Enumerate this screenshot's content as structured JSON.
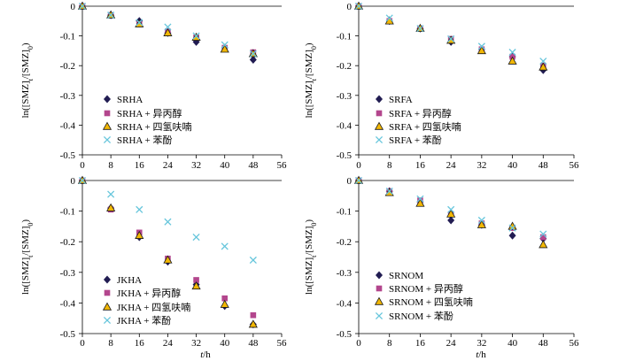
{
  "chart_data": [
    {
      "type": "scatter",
      "ylabel_parts": [
        {
          "text": "ln([SMZ]"
        },
        {
          "text": "t",
          "sub": true
        },
        {
          "text": "/[SMZ]"
        },
        {
          "text": "0",
          "sub": true
        },
        {
          "text": ")"
        }
      ],
      "x": [
        0,
        8,
        16,
        24,
        32,
        40,
        48
      ],
      "xlim": [
        0,
        56
      ],
      "xticks": [
        0,
        8,
        16,
        24,
        32,
        40,
        48,
        56
      ],
      "ylim": [
        -0.5,
        0
      ],
      "yticks": [
        0,
        -0.1,
        -0.2,
        -0.3,
        -0.4,
        -0.5
      ],
      "grid": false,
      "legend": "bottom-left",
      "series": [
        {
          "name": "SRHA",
          "marker": "diamond",
          "color": "#211c52",
          "values": [
            0,
            -0.03,
            -0.05,
            -0.09,
            -0.12,
            -0.14,
            -0.18
          ]
        },
        {
          "name": "SRHA + 异丙醇",
          "marker": "square",
          "color": "#b3468d",
          "values": [
            0,
            -0.03,
            -0.06,
            -0.085,
            -0.105,
            -0.14,
            -0.155
          ]
        },
        {
          "name": "SRHA + 四氢呋喃",
          "marker": "triangle",
          "color": "#f2b705",
          "edgecolor": "#1a1a1a",
          "values": [
            0,
            -0.03,
            -0.06,
            -0.09,
            -0.105,
            -0.145,
            -0.16
          ]
        },
        {
          "name": "SRHA + 苯酚",
          "marker": "x",
          "color": "#67c6dc",
          "values": [
            0,
            -0.03,
            -0.055,
            -0.07,
            -0.1,
            -0.13,
            -0.16
          ]
        }
      ]
    },
    {
      "type": "scatter",
      "ylabel_parts": [
        {
          "text": "ln([SMZ]"
        },
        {
          "text": "t",
          "sub": true
        },
        {
          "text": "/[SMZ]"
        },
        {
          "text": "0",
          "sub": true
        },
        {
          "text": ")"
        }
      ],
      "x": [
        0,
        8,
        16,
        24,
        32,
        40,
        48
      ],
      "xlim": [
        0,
        56
      ],
      "xticks": [
        0,
        8,
        16,
        24,
        32,
        40,
        48,
        56
      ],
      "ylim": [
        -0.5,
        0
      ],
      "yticks": [
        0,
        -0.1,
        -0.2,
        -0.3,
        -0.4,
        -0.5
      ],
      "grid": false,
      "legend": "bottom-left",
      "series": [
        {
          "name": "SRFA",
          "marker": "diamond",
          "color": "#211c52",
          "values": [
            0,
            -0.05,
            -0.075,
            -0.12,
            -0.145,
            -0.17,
            -0.215
          ]
        },
        {
          "name": "SRFA + 异丙醇",
          "marker": "square",
          "color": "#b3468d",
          "values": [
            0,
            -0.05,
            -0.075,
            -0.11,
            -0.145,
            -0.17,
            -0.2
          ]
        },
        {
          "name": "SRFA + 四氢呋喃",
          "marker": "triangle",
          "color": "#f2b705",
          "edgecolor": "#1a1a1a",
          "values": [
            0,
            -0.05,
            -0.075,
            -0.115,
            -0.15,
            -0.185,
            -0.205
          ]
        },
        {
          "name": "SRFA + 苯酚",
          "marker": "x",
          "color": "#67c6dc",
          "values": [
            0,
            -0.04,
            -0.075,
            -0.11,
            -0.135,
            -0.155,
            -0.185
          ]
        }
      ]
    },
    {
      "type": "scatter",
      "ylabel_parts": [
        {
          "text": "ln([SMZ]"
        },
        {
          "text": "t",
          "sub": true
        },
        {
          "text": "/[SMZ]"
        },
        {
          "text": "0",
          "sub": true
        },
        {
          "text": ")"
        }
      ],
      "xlabel_parts": [
        {
          "text": "t",
          "italic": true
        },
        {
          "text": "/h"
        }
      ],
      "x": [
        0,
        8,
        16,
        24,
        32,
        40,
        48
      ],
      "xlim": [
        0,
        56
      ],
      "xticks": [
        0,
        8,
        16,
        24,
        32,
        40,
        48,
        56
      ],
      "ylim": [
        -0.5,
        0
      ],
      "yticks": [
        0,
        -0.1,
        -0.2,
        -0.3,
        -0.4,
        -0.5
      ],
      "grid": false,
      "legend": "bottom-left",
      "series": [
        {
          "name": "JKHA",
          "marker": "diamond",
          "color": "#211c52",
          "values": [
            0,
            -0.09,
            -0.185,
            -0.265,
            -0.34,
            -0.41,
            -0.47
          ]
        },
        {
          "name": "JKHA + 异丙醇",
          "marker": "square",
          "color": "#b3468d",
          "values": [
            0,
            -0.095,
            -0.17,
            -0.255,
            -0.325,
            -0.385,
            -0.44
          ]
        },
        {
          "name": "JKHA + 四氢呋喃",
          "marker": "triangle",
          "color": "#f2b705",
          "edgecolor": "#1a1a1a",
          "values": [
            0,
            -0.09,
            -0.18,
            -0.26,
            -0.345,
            -0.405,
            -0.47
          ]
        },
        {
          "name": "JKHA + 苯酚",
          "marker": "x",
          "color": "#67c6dc",
          "values": [
            0,
            -0.045,
            -0.095,
            -0.135,
            -0.185,
            -0.215,
            -0.26
          ]
        }
      ]
    },
    {
      "type": "scatter",
      "ylabel_parts": [
        {
          "text": "ln([SMZ]"
        },
        {
          "text": "t",
          "sub": true
        },
        {
          "text": "/[SMZ]"
        },
        {
          "text": "0",
          "sub": true
        },
        {
          "text": ")"
        }
      ],
      "xlabel_parts": [
        {
          "text": "t",
          "italic": true
        },
        {
          "text": "/h"
        }
      ],
      "x": [
        0,
        8,
        16,
        24,
        32,
        40,
        48
      ],
      "xlim": [
        0,
        56
      ],
      "xticks": [
        0,
        8,
        16,
        24,
        32,
        40,
        48,
        56
      ],
      "ylim": [
        -0.5,
        0
      ],
      "yticks": [
        0,
        -0.1,
        -0.2,
        -0.3,
        -0.4,
        -0.5
      ],
      "grid": false,
      "legend": "bottom-left",
      "series": [
        {
          "name": "SRNOM",
          "marker": "diamond",
          "color": "#211c52",
          "values": [
            0,
            -0.035,
            -0.07,
            -0.13,
            -0.145,
            -0.18,
            -0.19
          ]
        },
        {
          "name": "SRNOM + 异丙醇",
          "marker": "square",
          "color": "#b3468d",
          "values": [
            0,
            -0.035,
            -0.065,
            -0.11,
            -0.14,
            -0.155,
            -0.185
          ]
        },
        {
          "name": "SRNOM + 四氢呋喃",
          "marker": "triangle",
          "color": "#f2b705",
          "edgecolor": "#1a1a1a",
          "values": [
            0,
            -0.04,
            -0.075,
            -0.11,
            -0.145,
            -0.15,
            -0.21
          ]
        },
        {
          "name": "SRNOM + 苯酚",
          "marker": "x",
          "color": "#67c6dc",
          "values": [
            0,
            -0.035,
            -0.06,
            -0.095,
            -0.13,
            -0.155,
            -0.175
          ]
        }
      ]
    }
  ]
}
